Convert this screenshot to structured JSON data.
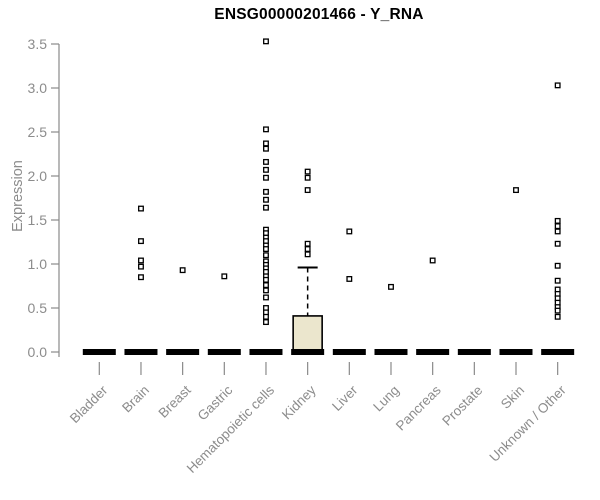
{
  "chart_data": {
    "type": "boxplot",
    "title": "ENSG00000201466 - Y_RNA",
    "ylabel": "Expression",
    "ylim": [
      0,
      3.5
    ],
    "yticks": [
      "0.0",
      "0.5",
      "1.0",
      "1.5",
      "2.0",
      "2.5",
      "3.0",
      "3.5"
    ],
    "grid": false,
    "legend": "none",
    "axis_color": "#8a8a8a",
    "label_color": "#8c8c8c",
    "title_color": "#000000",
    "box_fill": "#EBE6CD",
    "box_stroke": "#000000",
    "point_color": "#000000",
    "categories": [
      "Bladder",
      "Brain",
      "Breast",
      "Gastric",
      "Hematopoietic cells",
      "Kidney",
      "Liver",
      "Lung",
      "Pancreas",
      "Prostate",
      "Skin",
      "Unknown / Other"
    ],
    "series": [
      {
        "category": "Bladder",
        "median": 0,
        "q1": 0,
        "q3": 0,
        "whisker_high": 0,
        "outliers": []
      },
      {
        "category": "Brain",
        "median": 0,
        "q1": 0,
        "q3": 0,
        "whisker_high": 0,
        "outliers": [
          1.63,
          1.26,
          1.04,
          0.97,
          0.85
        ]
      },
      {
        "category": "Breast",
        "median": 0,
        "q1": 0,
        "q3": 0,
        "whisker_high": 0,
        "outliers": [
          0.93
        ]
      },
      {
        "category": "Gastric",
        "median": 0,
        "q1": 0,
        "q3": 0,
        "whisker_high": 0,
        "outliers": [
          0.86
        ]
      },
      {
        "category": "Hematopoietic cells",
        "median": 0,
        "q1": 0,
        "q3": 0,
        "whisker_high": 0,
        "outliers": [
          3.53,
          2.53,
          2.37,
          2.31,
          2.16,
          2.07,
          1.98,
          1.82,
          1.73,
          1.64,
          1.39,
          1.35,
          1.3,
          1.26,
          1.21,
          1.17,
          1.1,
          1.03,
          0.99,
          0.95,
          0.91,
          0.86,
          0.82,
          0.76,
          0.7,
          0.62,
          0.5,
          0.45,
          0.4,
          0.34
        ]
      },
      {
        "category": "Kidney",
        "median": 0,
        "q1": 0,
        "q3": 0.41,
        "whisker_high": 0.96,
        "outliers": [
          2.05,
          1.98,
          1.84,
          1.23,
          1.17,
          1.11
        ]
      },
      {
        "category": "Liver",
        "median": 0,
        "q1": 0,
        "q3": 0,
        "whisker_high": 0,
        "outliers": [
          1.37,
          0.83
        ]
      },
      {
        "category": "Lung",
        "median": 0,
        "q1": 0,
        "q3": 0,
        "whisker_high": 0,
        "outliers": [
          0.74
        ]
      },
      {
        "category": "Pancreas",
        "median": 0,
        "q1": 0,
        "q3": 0,
        "whisker_high": 0,
        "outliers": [
          1.04
        ]
      },
      {
        "category": "Prostate",
        "median": 0,
        "q1": 0,
        "q3": 0,
        "whisker_high": 0,
        "outliers": []
      },
      {
        "category": "Skin",
        "median": 0,
        "q1": 0,
        "q3": 0,
        "whisker_high": 0,
        "outliers": [
          1.84
        ]
      },
      {
        "category": "Unknown / Other",
        "median": 0,
        "q1": 0,
        "q3": 0,
        "whisker_high": 0,
        "outliers": [
          3.03,
          1.49,
          1.43,
          1.37,
          1.23,
          0.98,
          0.81,
          0.71,
          0.66,
          0.61,
          0.56,
          0.51,
          0.47,
          0.4
        ]
      }
    ]
  }
}
